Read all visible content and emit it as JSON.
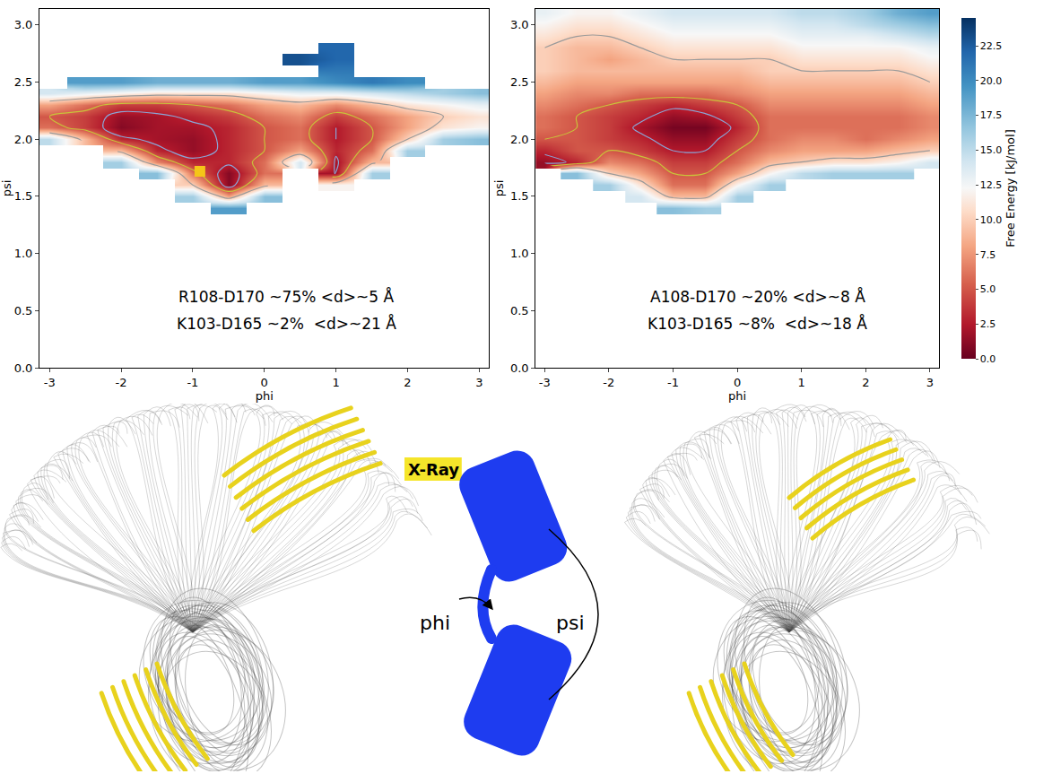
{
  "chart_data": [
    {
      "type": "heatmap",
      "xlabel": "phi",
      "ylabel": "psi",
      "xlim": [
        -3.14,
        3.14
      ],
      "ylim": [
        0,
        3.14
      ],
      "xticks": [
        -3,
        -2,
        -1,
        0,
        1,
        2,
        3
      ],
      "yticks": [
        {
          "value": 0,
          "label": "0.0"
        },
        {
          "value": 0.5,
          "label": "0.5"
        },
        {
          "value": 1,
          "label": "1.0"
        },
        {
          "value": 1.5,
          "label": "1.5"
        },
        {
          "value": 2,
          "label": "2.0"
        },
        {
          "value": 2.5,
          "label": "2.5"
        },
        {
          "value": 3,
          "label": "3.0"
        }
      ],
      "zlim": [
        0,
        24.5
      ],
      "x": [
        -3,
        -2.5,
        -2,
        -1.5,
        -1,
        -0.5,
        0,
        0.5,
        1,
        1.5,
        2,
        2.5,
        3
      ],
      "y": [
        1.3,
        1.4,
        1.5,
        1.6,
        1.7,
        1.8,
        1.9,
        2.0,
        2.1,
        2.2,
        2.3,
        2.4,
        2.5,
        2.6,
        2.7,
        2.8,
        2.9,
        3.0,
        3.1
      ],
      "z": [
        [
          null,
          null,
          null,
          null,
          null,
          null,
          null,
          null,
          null,
          null,
          null,
          null,
          null
        ],
        [
          null,
          null,
          null,
          null,
          null,
          19,
          null,
          null,
          null,
          null,
          null,
          null,
          null
        ],
        [
          null,
          null,
          null,
          null,
          16,
          8,
          17,
          null,
          null,
          null,
          null,
          null,
          null
        ],
        [
          null,
          null,
          null,
          null,
          10,
          1,
          9,
          null,
          12,
          null,
          null,
          null,
          null
        ],
        [
          null,
          null,
          null,
          17,
          6,
          1,
          6,
          null,
          2,
          16,
          null,
          null,
          null
        ],
        [
          null,
          null,
          16,
          7,
          3,
          3,
          6,
          14,
          2,
          9,
          null,
          null,
          null
        ],
        [
          null,
          null,
          9,
          3,
          1.5,
          3,
          5,
          8,
          3,
          6,
          16,
          null,
          null
        ],
        [
          15,
          9,
          3,
          2,
          1.5,
          3,
          5,
          6,
          2.5,
          5,
          10,
          16,
          17
        ],
        [
          6,
          4,
          1,
          2,
          2,
          3,
          5,
          6,
          2.5,
          5,
          8,
          11,
          12
        ],
        [
          5,
          4,
          1.5,
          2,
          3,
          4,
          6,
          7,
          4,
          6,
          8,
          10,
          11
        ],
        [
          8,
          6,
          4,
          4,
          5,
          6,
          8,
          9,
          7,
          9,
          11,
          12,
          13
        ],
        [
          14,
          13,
          12,
          11,
          11,
          11,
          12,
          13,
          13,
          14,
          15,
          16,
          17
        ],
        [
          null,
          19,
          19,
          18,
          18,
          18,
          19,
          19,
          20,
          21,
          20,
          null,
          null
        ],
        [
          null,
          null,
          null,
          null,
          null,
          null,
          null,
          null,
          21,
          null,
          null,
          null,
          null
        ],
        [
          null,
          null,
          null,
          null,
          null,
          null,
          null,
          23,
          22,
          null,
          null,
          null,
          null
        ],
        [
          null,
          null,
          null,
          null,
          null,
          null,
          null,
          null,
          22,
          null,
          null,
          null,
          null
        ],
        [
          null,
          null,
          null,
          null,
          null,
          null,
          null,
          null,
          null,
          null,
          null,
          null,
          null
        ],
        [
          null,
          null,
          null,
          null,
          null,
          null,
          null,
          null,
          null,
          null,
          null,
          null,
          null
        ],
        [
          null,
          null,
          null,
          null,
          null,
          null,
          null,
          null,
          null,
          null,
          null,
          null,
          null
        ]
      ],
      "contours": [
        2.5,
        5,
        10
      ],
      "series": [
        {
          "type": "scatter",
          "marker": "square",
          "color": "#f5c518",
          "x": [
            -0.9
          ],
          "y": [
            1.72
          ]
        }
      ],
      "annotations": [
        "R108-D170 ~75% <d>~5 Å",
        "K103-D165 ~2%  <d>~21 Å"
      ]
    },
    {
      "type": "heatmap",
      "xlabel": "phi",
      "ylabel": "psi",
      "xlim": [
        -3.14,
        3.14
      ],
      "ylim": [
        0,
        3.14
      ],
      "xticks": [
        -3,
        -2,
        -1,
        0,
        1,
        2,
        3
      ],
      "yticks": [
        {
          "value": 0,
          "label": "0.0"
        },
        {
          "value": 0.5,
          "label": "0.5"
        },
        {
          "value": 1,
          "label": "1.0"
        },
        {
          "value": 1.5,
          "label": "1.5"
        },
        {
          "value": 2,
          "label": "2.0"
        },
        {
          "value": 2.5,
          "label": "2.5"
        },
        {
          "value": 3,
          "label": "3.0"
        }
      ],
      "zlim": [
        0,
        24.5
      ],
      "x": [
        -3,
        -2.5,
        -2,
        -1.5,
        -1,
        -0.5,
        0,
        0.5,
        1,
        1.5,
        2,
        2.5,
        3
      ],
      "y": [
        1.3,
        1.4,
        1.5,
        1.6,
        1.7,
        1.8,
        1.9,
        2.0,
        2.1,
        2.2,
        2.3,
        2.4,
        2.5,
        2.6,
        2.7,
        2.8,
        2.9,
        3.0,
        3.1
      ],
      "z": [
        [
          null,
          null,
          null,
          null,
          null,
          null,
          null,
          null,
          null,
          null,
          null,
          null,
          null
        ],
        [
          null,
          null,
          null,
          null,
          17,
          16,
          null,
          null,
          null,
          null,
          null,
          null,
          null
        ],
        [
          null,
          null,
          null,
          14,
          9,
          9,
          16,
          null,
          null,
          null,
          null,
          null,
          null
        ],
        [
          null,
          null,
          16,
          11,
          6,
          6,
          12,
          16,
          null,
          null,
          null,
          null,
          null
        ],
        [
          null,
          17,
          10,
          8,
          5,
          5,
          8,
          12,
          15,
          16,
          16,
          16,
          null
        ],
        [
          1.5,
          3,
          7,
          6,
          4,
          4,
          6,
          9,
          10,
          11,
          11,
          12,
          14
        ],
        [
          3,
          5,
          5,
          4,
          2.5,
          2.5,
          5,
          7,
          8,
          8,
          8,
          9,
          10
        ],
        [
          5,
          5,
          4,
          3,
          1.5,
          1.5,
          4,
          6,
          7,
          7,
          6,
          7,
          8
        ],
        [
          6,
          5,
          4,
          2,
          0.5,
          0.5,
          3,
          6,
          6,
          6,
          6,
          6,
          7
        ],
        [
          6,
          5,
          4,
          3,
          1.5,
          2,
          4,
          6,
          6,
          6,
          6,
          6,
          7
        ],
        [
          7,
          6,
          5,
          4,
          3,
          4,
          5,
          7,
          7,
          7,
          7,
          7,
          8
        ],
        [
          8,
          7,
          7,
          6,
          6,
          6,
          7,
          8,
          8,
          8,
          8,
          8,
          9
        ],
        [
          9,
          8,
          8,
          8,
          8,
          8,
          8,
          9,
          9,
          9,
          9,
          9,
          10
        ],
        [
          10,
          9,
          9,
          9,
          9,
          9,
          9,
          10,
          10,
          10,
          10,
          10,
          11
        ],
        [
          10,
          9,
          8,
          9,
          10,
          10,
          10,
          10,
          11,
          11,
          11,
          11,
          12
        ],
        [
          10,
          9,
          9,
          10,
          11,
          11,
          11,
          11,
          12,
          12,
          12,
          12,
          13
        ],
        [
          11,
          10,
          10,
          11,
          12,
          12,
          12,
          12,
          13,
          13,
          13,
          14,
          15
        ],
        [
          12,
          11,
          11,
          12,
          13,
          13,
          13,
          13,
          14,
          14,
          15,
          16,
          17
        ],
        [
          13,
          12,
          12,
          13,
          14,
          14,
          14,
          14,
          15,
          15,
          16,
          18,
          19
        ]
      ],
      "contours": [
        2.5,
        5,
        10
      ],
      "colorbar": {
        "title": "Free Energy [kJ/mol]",
        "zticks": [
          {
            "value": 0,
            "label": "0.0"
          },
          {
            "value": 2.5,
            "label": "2.5"
          },
          {
            "value": 5,
            "label": "5.0"
          },
          {
            "value": 7.5,
            "label": "7.5"
          },
          {
            "value": 10,
            "label": "10.0"
          },
          {
            "value": 12.5,
            "label": "12.5"
          },
          {
            "value": 15,
            "label": "15.0"
          },
          {
            "value": 17.5,
            "label": "17.5"
          },
          {
            "value": 20,
            "label": "20.0"
          },
          {
            "value": 22.5,
            "label": "22.5"
          }
        ]
      },
      "annotations": [
        "A108-D170 ~20% <d>~8 Å",
        "K103-D165 ~8%  <d>~18 Å"
      ]
    }
  ],
  "diagram": {
    "xray": "X-Ray",
    "phi": "phi",
    "psi": "psi"
  }
}
